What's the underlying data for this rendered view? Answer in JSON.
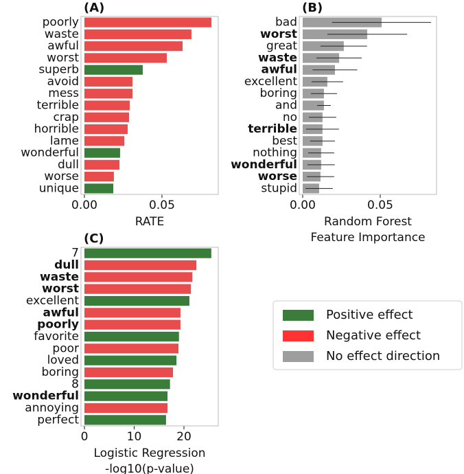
{
  "chart_data": [
    {
      "type": "bar",
      "orientation": "horizontal",
      "title": "(A)",
      "xlabel": [
        "RATE"
      ],
      "categories": [
        "poorly",
        "waste",
        "awful",
        "worst",
        "superb",
        "avoid",
        "mess",
        "terrible",
        "crap",
        "horrible",
        "lame",
        "wonderful",
        "dull",
        "worse",
        "unique"
      ],
      "values": [
        0.0819,
        0.069,
        0.0633,
        0.0531,
        0.0376,
        0.031,
        0.031,
        0.0292,
        0.0288,
        0.0279,
        0.0257,
        0.023,
        0.0226,
        0.019,
        0.0186
      ],
      "colors": [
        "#e84c4c",
        "#e84c4c",
        "#e84c4c",
        "#e84c4c",
        "#3a7d3a",
        "#e84c4c",
        "#e84c4c",
        "#e84c4c",
        "#e84c4c",
        "#e84c4c",
        "#e84c4c",
        "#3a7d3a",
        "#e84c4c",
        "#e84c4c",
        "#3a7d3a"
      ],
      "bold": [
        false,
        false,
        false,
        false,
        false,
        false,
        false,
        false,
        false,
        false,
        false,
        false,
        false,
        false,
        false
      ],
      "xlim": [
        -0.0022,
        0.0863
      ],
      "xticks": [
        {
          "value": 0,
          "label": "0.00"
        },
        {
          "value": 0.05,
          "label": "0.05"
        }
      ]
    },
    {
      "type": "bar",
      "orientation": "horizontal",
      "title": "(B)",
      "xlabel": [
        "Random Forest",
        "Feature Importance"
      ],
      "categories": [
        "bad",
        "worst",
        "great",
        "waste",
        "awful",
        "excellent",
        "boring",
        "and",
        "no",
        "terrible",
        "best",
        "nothing",
        "wonderful",
        "worse",
        "stupid"
      ],
      "values": [
        0.0509,
        0.0416,
        0.0265,
        0.0235,
        0.0208,
        0.0159,
        0.0137,
        0.0137,
        0.0128,
        0.0128,
        0.0128,
        0.0119,
        0.0119,
        0.0115,
        0.0106
      ],
      "errors": [
        0.0319,
        0.0257,
        0.015,
        0.0146,
        0.0144,
        0.0102,
        0.0084,
        0.0044,
        0.0088,
        0.0106,
        0.008,
        0.0084,
        0.0088,
        0.0088,
        0.0088
      ],
      "color": "#9e9e9e",
      "bold": [
        false,
        true,
        false,
        true,
        true,
        false,
        false,
        false,
        false,
        true,
        false,
        false,
        true,
        true,
        false
      ],
      "xlim": [
        -0.0022,
        0.0863
      ],
      "xticks": [
        {
          "value": 0,
          "label": "0.00"
        },
        {
          "value": 0.05,
          "label": "0.05"
        }
      ]
    },
    {
      "type": "bar",
      "orientation": "horizontal",
      "title": "(C)",
      "xlabel": [
        "Logistic Regression",
        "-log10(p-value)"
      ],
      "categories": [
        "7",
        "dull",
        "waste",
        "worst",
        "excellent",
        "awful",
        "poorly",
        "favorite",
        "poor",
        "loved",
        "boring",
        "8",
        "wonderful",
        "annoying",
        "perfect"
      ],
      "values": [
        25.5,
        22.5,
        21.7,
        21.4,
        21.1,
        19.3,
        19.3,
        19.0,
        18.9,
        18.5,
        17.8,
        17.2,
        16.7,
        16.7,
        16.4
      ],
      "colors": [
        "#3a7d3a",
        "#e84c4c",
        "#e84c4c",
        "#e84c4c",
        "#3a7d3a",
        "#e84c4c",
        "#e84c4c",
        "#3a7d3a",
        "#e84c4c",
        "#3a7d3a",
        "#e84c4c",
        "#3a7d3a",
        "#3a7d3a",
        "#e84c4c",
        "#3a7d3a"
      ],
      "bold": [
        false,
        true,
        true,
        true,
        false,
        true,
        true,
        false,
        false,
        false,
        false,
        false,
        true,
        false,
        false
      ],
      "xlim": [
        -0.69,
        26.9
      ],
      "xticks": [
        0,
        10,
        20
      ]
    }
  ],
  "legend": {
    "entries": [
      {
        "name": "Positive effect",
        "color": "#3a7d3a"
      },
      {
        "name": "Negative effect",
        "color": "#ff3333"
      },
      {
        "name": "No effect direction",
        "color": "#9e9e9e"
      }
    ]
  }
}
